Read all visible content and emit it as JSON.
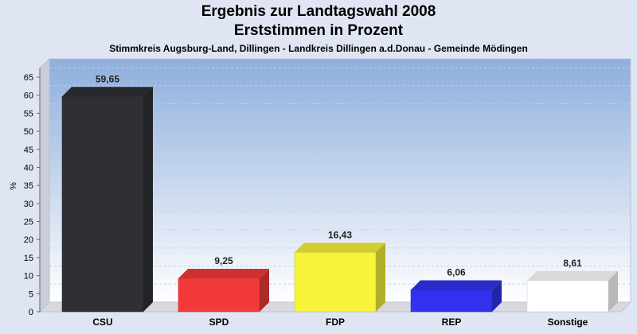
{
  "header": {
    "title_line1": "Ergebnis zur Landtagswahl 2008",
    "title_line2": "Erststimmen in Prozent",
    "subtitle": "Stimmkreis Augsburg-Land, Dillingen - Landkreis Dillingen a.d.Donau - Gemeinde Mödingen"
  },
  "chart_data": {
    "type": "bar",
    "title": "Ergebnis zur Landtagswahl 2008",
    "subtitle": "Erststimmen in Prozent",
    "ylabel": "%",
    "xlabel": "",
    "ylim": [
      0,
      65
    ],
    "yticks": [
      "0",
      "5",
      "10",
      "15",
      "20",
      "25",
      "30",
      "35",
      "40",
      "45",
      "50",
      "55",
      "60",
      "65"
    ],
    "categories": [
      "CSU",
      "SPD",
      "FDP",
      "REP",
      "Sonstige"
    ],
    "values": [
      59.65,
      9.25,
      16.43,
      6.06,
      8.61
    ],
    "value_labels": [
      "59,65",
      "9,25",
      "16,43",
      "6,06",
      "8,61"
    ],
    "colors": [
      "#2e3035",
      "#f23a3a",
      "#f7f23a",
      "#3232ee",
      "#ffffff"
    ],
    "grid": true,
    "legend": "none"
  }
}
